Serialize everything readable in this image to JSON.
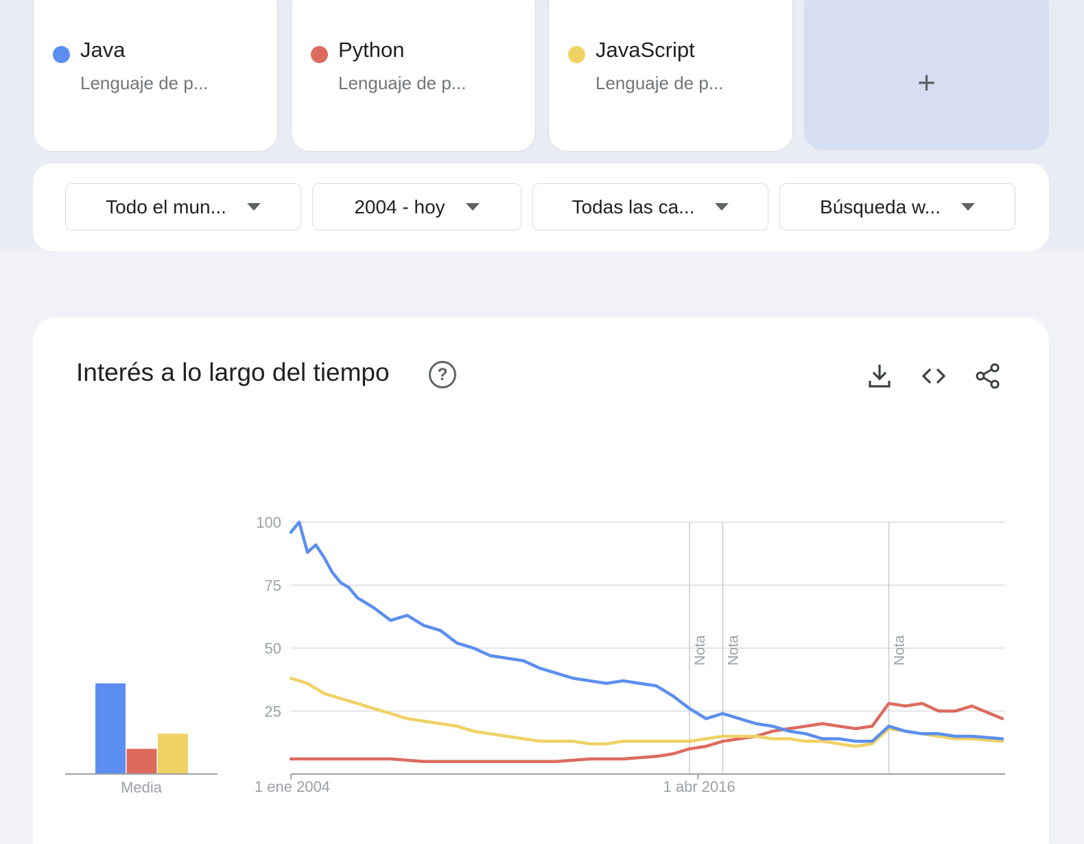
{
  "terms": [
    {
      "name": "Java",
      "subtitle": "Lenguaje de p...",
      "color": "#5b8ef0"
    },
    {
      "name": "Python",
      "subtitle": "Lenguaje de p...",
      "color": "#dc6b5e"
    },
    {
      "name": "JavaScript",
      "subtitle": "Lenguaje de p...",
      "color": "#f0d163"
    }
  ],
  "add_label": "+",
  "filters": [
    {
      "label": "Todo el mun..."
    },
    {
      "label": "2004 - hoy"
    },
    {
      "label": "Todas las ca..."
    },
    {
      "label": "Búsqueda w..."
    }
  ],
  "panel": {
    "title": "Interés a lo largo del tiempo",
    "help": "?",
    "icons": [
      "download-icon",
      "embed-code-icon",
      "share-icon"
    ]
  },
  "chart_data": {
    "type": "line",
    "title": "",
    "x_range": [
      "2004-01",
      "2025-06"
    ],
    "x_tick_labels": [
      "1 ene 2004",
      "1 abr 2016"
    ],
    "y_ticks": [
      25,
      50,
      75,
      100
    ],
    "ylim": [
      0,
      100
    ],
    "grid": true,
    "notes": [
      {
        "label": "Nota",
        "x": "2016-01"
      },
      {
        "label": "Nota",
        "x": "2017-01"
      },
      {
        "label": "Nota",
        "x": "2022-01"
      }
    ],
    "series": [
      {
        "name": "Java",
        "color": "#5b8ef0",
        "points": [
          [
            "2004-01",
            96
          ],
          [
            "2004-04",
            100
          ],
          [
            "2004-07",
            88
          ],
          [
            "2004-10",
            91
          ],
          [
            "2005-01",
            86
          ],
          [
            "2005-04",
            80
          ],
          [
            "2005-07",
            76
          ],
          [
            "2005-10",
            74
          ],
          [
            "2006-01",
            70
          ],
          [
            "2006-07",
            66
          ],
          [
            "2007-01",
            61
          ],
          [
            "2007-07",
            63
          ],
          [
            "2008-01",
            59
          ],
          [
            "2008-07",
            57
          ],
          [
            "2009-01",
            52
          ],
          [
            "2009-07",
            50
          ],
          [
            "2010-01",
            47
          ],
          [
            "2010-07",
            46
          ],
          [
            "2011-01",
            45
          ],
          [
            "2011-07",
            42
          ],
          [
            "2012-01",
            40
          ],
          [
            "2012-07",
            38
          ],
          [
            "2013-01",
            37
          ],
          [
            "2013-07",
            36
          ],
          [
            "2014-01",
            37
          ],
          [
            "2014-07",
            36
          ],
          [
            "2015-01",
            35
          ],
          [
            "2015-07",
            31
          ],
          [
            "2016-01",
            26
          ],
          [
            "2016-07",
            22
          ],
          [
            "2017-01",
            24
          ],
          [
            "2017-07",
            22
          ],
          [
            "2018-01",
            20
          ],
          [
            "2018-07",
            19
          ],
          [
            "2019-01",
            17
          ],
          [
            "2019-07",
            16
          ],
          [
            "2020-01",
            14
          ],
          [
            "2020-07",
            14
          ],
          [
            "2021-01",
            13
          ],
          [
            "2021-07",
            13
          ],
          [
            "2022-01",
            19
          ],
          [
            "2022-07",
            17
          ],
          [
            "2023-01",
            16
          ],
          [
            "2023-07",
            16
          ],
          [
            "2024-01",
            15
          ],
          [
            "2024-07",
            15
          ],
          [
            "2025-06",
            14
          ]
        ]
      },
      {
        "name": "Python",
        "color": "#dc6b5e",
        "points": [
          [
            "2004-01",
            6
          ],
          [
            "2005-01",
            6
          ],
          [
            "2006-01",
            6
          ],
          [
            "2007-01",
            6
          ],
          [
            "2008-01",
            5
          ],
          [
            "2009-01",
            5
          ],
          [
            "2010-01",
            5
          ],
          [
            "2011-01",
            5
          ],
          [
            "2012-01",
            5
          ],
          [
            "2013-01",
            6
          ],
          [
            "2014-01",
            6
          ],
          [
            "2015-01",
            7
          ],
          [
            "2015-07",
            8
          ],
          [
            "2016-01",
            10
          ],
          [
            "2016-07",
            11
          ],
          [
            "2017-01",
            13
          ],
          [
            "2017-07",
            14
          ],
          [
            "2018-01",
            15
          ],
          [
            "2018-07",
            17
          ],
          [
            "2019-01",
            18
          ],
          [
            "2019-07",
            19
          ],
          [
            "2020-01",
            20
          ],
          [
            "2020-07",
            19
          ],
          [
            "2021-01",
            18
          ],
          [
            "2021-07",
            19
          ],
          [
            "2022-01",
            28
          ],
          [
            "2022-07",
            27
          ],
          [
            "2023-01",
            28
          ],
          [
            "2023-07",
            25
          ],
          [
            "2024-01",
            25
          ],
          [
            "2024-07",
            27
          ],
          [
            "2025-06",
            22
          ]
        ]
      },
      {
        "name": "JavaScript",
        "color": "#f0d163",
        "points": [
          [
            "2004-01",
            38
          ],
          [
            "2004-07",
            36
          ],
          [
            "2005-01",
            32
          ],
          [
            "2005-07",
            30
          ],
          [
            "2006-01",
            28
          ],
          [
            "2006-07",
            26
          ],
          [
            "2007-01",
            24
          ],
          [
            "2007-07",
            22
          ],
          [
            "2008-01",
            21
          ],
          [
            "2008-07",
            20
          ],
          [
            "2009-01",
            19
          ],
          [
            "2009-07",
            17
          ],
          [
            "2010-01",
            16
          ],
          [
            "2010-07",
            15
          ],
          [
            "2011-01",
            14
          ],
          [
            "2011-07",
            13
          ],
          [
            "2012-01",
            13
          ],
          [
            "2012-07",
            13
          ],
          [
            "2013-01",
            12
          ],
          [
            "2013-07",
            12
          ],
          [
            "2014-01",
            13
          ],
          [
            "2014-07",
            13
          ],
          [
            "2015-01",
            13
          ],
          [
            "2015-07",
            13
          ],
          [
            "2016-01",
            13
          ],
          [
            "2016-07",
            14
          ],
          [
            "2017-01",
            15
          ],
          [
            "2017-07",
            15
          ],
          [
            "2018-01",
            15
          ],
          [
            "2018-07",
            14
          ],
          [
            "2019-01",
            14
          ],
          [
            "2019-07",
            13
          ],
          [
            "2020-01",
            13
          ],
          [
            "2020-07",
            12
          ],
          [
            "2021-01",
            11
          ],
          [
            "2021-07",
            12
          ],
          [
            "2022-01",
            18
          ],
          [
            "2022-07",
            17
          ],
          [
            "2023-01",
            16
          ],
          [
            "2023-07",
            15
          ],
          [
            "2024-01",
            14
          ],
          [
            "2024-07",
            14
          ],
          [
            "2025-06",
            13
          ]
        ]
      }
    ],
    "averages": {
      "label": "Media",
      "values": [
        36,
        10,
        16
      ]
    }
  }
}
